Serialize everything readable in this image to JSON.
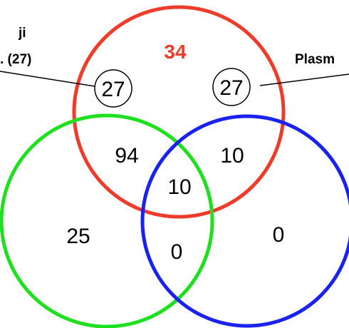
{
  "colors": {
    "red": "#ee3b2a",
    "green": "#1fe01f",
    "blue": "#1a22ee",
    "text": "#000000"
  },
  "labels": {
    "left_line1": "ji",
    "left_line2": ". (27)",
    "right": "Plasm"
  },
  "regions": {
    "red_only": "34",
    "red_green": "94",
    "red_blue": "10",
    "all_three": "10",
    "green_only": "25",
    "green_blue": "0",
    "blue_only": "0"
  },
  "callouts": {
    "left": "27",
    "right": "27"
  }
}
